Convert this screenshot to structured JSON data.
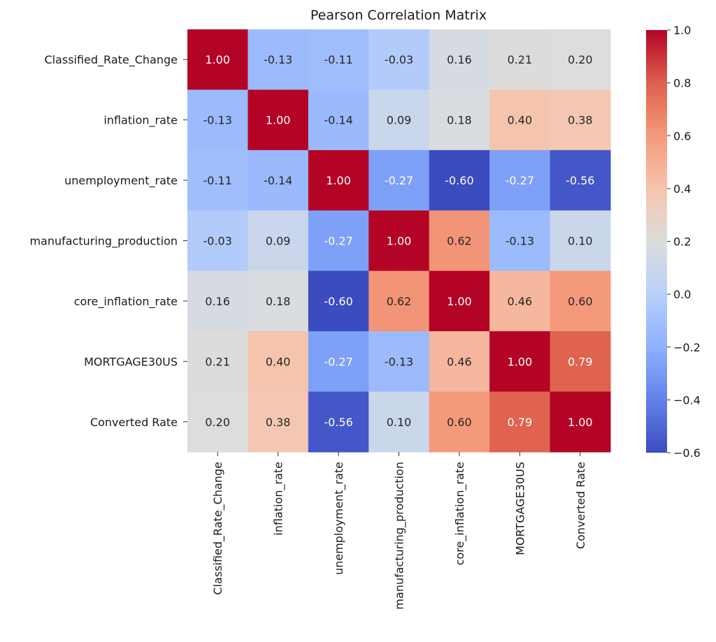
{
  "chart_data": {
    "type": "heatmap",
    "title": "Pearson Correlation Matrix",
    "labels": [
      "Classified_Rate_Change",
      "inflation_rate",
      "unemployment_rate",
      "manufacturing_production",
      "core_inflation_rate",
      "MORTGAGE30US",
      "Converted Rate"
    ],
    "values": [
      [
        1.0,
        -0.13,
        -0.11,
        -0.03,
        0.16,
        0.21,
        0.2
      ],
      [
        -0.13,
        1.0,
        -0.14,
        0.09,
        0.18,
        0.4,
        0.38
      ],
      [
        -0.11,
        -0.14,
        1.0,
        -0.27,
        -0.6,
        -0.27,
        -0.56
      ],
      [
        -0.03,
        0.09,
        -0.27,
        1.0,
        0.62,
        -0.13,
        0.1
      ],
      [
        0.16,
        0.18,
        -0.6,
        0.62,
        1.0,
        0.46,
        0.6
      ],
      [
        0.21,
        0.4,
        -0.27,
        -0.13,
        0.46,
        1.0,
        0.79
      ],
      [
        0.2,
        0.38,
        -0.56,
        0.1,
        0.6,
        0.79,
        1.0
      ]
    ],
    "colormap": "coolwarm",
    "vmin": -0.6,
    "vmax": 1.0,
    "colorbar_ticks": [
      "-0.6",
      "-0.4",
      "-0.2",
      "0.0",
      "0.2",
      "0.4",
      "0.6",
      "0.8",
      "1.0"
    ],
    "colorbar_tick_values": [
      -0.6,
      -0.4,
      -0.2,
      0.0,
      0.2,
      0.4,
      0.6,
      0.8,
      1.0
    ],
    "annotation_format": "0.00",
    "legend": "colorbar-right"
  }
}
